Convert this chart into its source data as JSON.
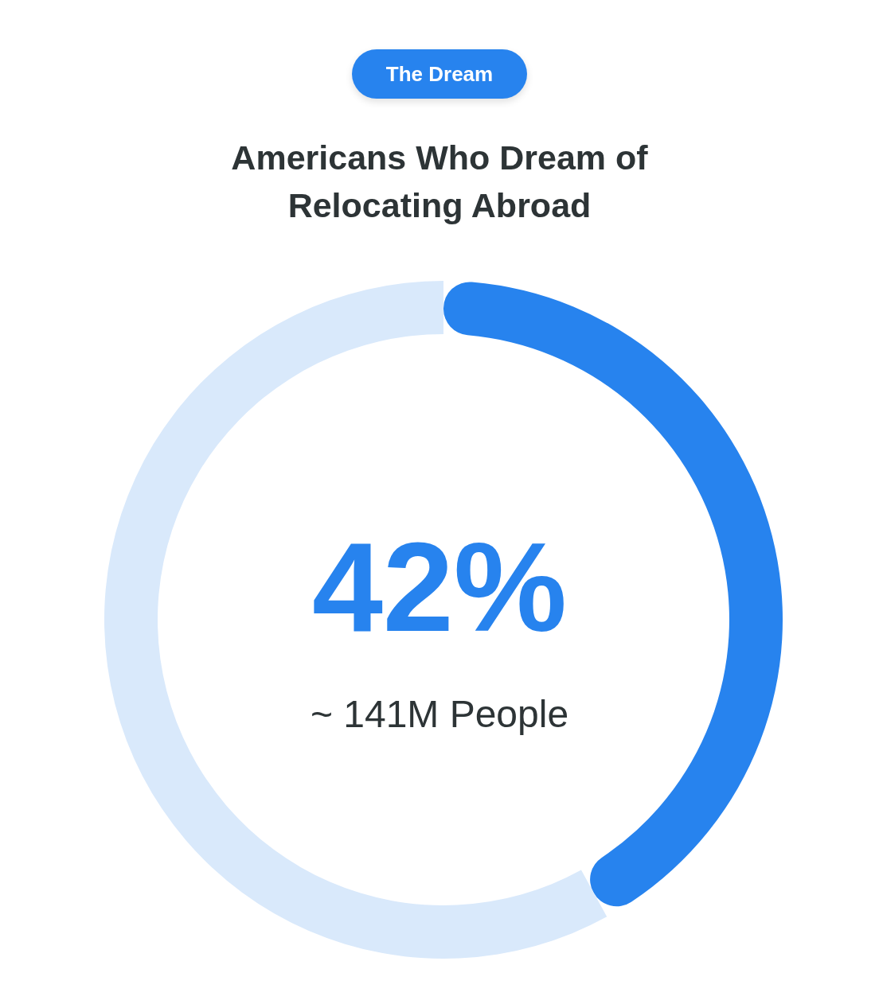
{
  "chart_data": {
    "type": "donut",
    "title": "Americans Who Dream of Relocating Abroad",
    "categories": [
      null,
      null
    ],
    "values": [
      42,
      58
    ],
    "colors": [
      "#2783ee",
      "#d9e9fb"
    ],
    "value_labels": [
      "42%",
      null
    ],
    "annotations": [
      "The Dream",
      "~ 141M People"
    ]
  }
}
